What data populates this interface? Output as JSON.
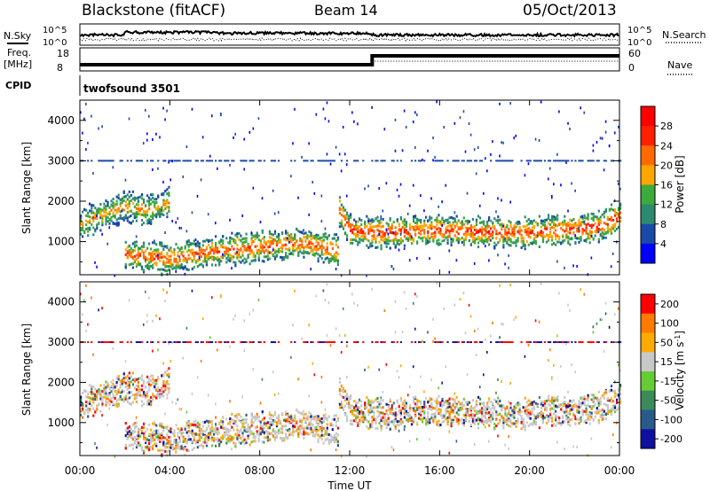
{
  "header": {
    "station": "Blackstone (fitACF)",
    "beam": "Beam 14",
    "date": "05/Oct/2013"
  },
  "noise_panel": {
    "left_label": "N.Sky",
    "right_label": "N.Search",
    "ticks": [
      "10^5",
      "10^0"
    ]
  },
  "freq_panel": {
    "left_label_1": "Freq.",
    "left_label_2": "[MHz]",
    "left_ticks": [
      "18",
      "8"
    ],
    "right_label": "Nave",
    "right_ticks": [
      "60",
      "0"
    ]
  },
  "cpid_panel": {
    "label": "CPID",
    "value": "twofsound 3501"
  },
  "chart_data": [
    {
      "type": "heatmap",
      "name": "power",
      "ylabel": "Slant Range [km]",
      "y_ticks": [
        1000,
        2000,
        3000,
        4000
      ],
      "ylim": [
        180,
        4500
      ],
      "xlim_hours": [
        0,
        24
      ],
      "colorbar": {
        "label": "Power [dB]",
        "ticks": [
          "4",
          "8",
          "12",
          "16",
          "20",
          "24",
          "28"
        ],
        "range": [
          0,
          32
        ],
        "colors": [
          "#0000ff",
          "#1a4aa8",
          "#2e8a6e",
          "#3caa3c",
          "#ffa500",
          "#ff6a00",
          "#ff2000",
          "#ff0000"
        ]
      },
      "bands": [
        {
          "t": [
            0,
            1,
            2,
            3,
            4
          ],
          "r": [
            1450,
            1700,
            1900,
            1800,
            2000
          ],
          "level": 20
        },
        {
          "t": [
            2,
            4,
            6,
            8,
            10,
            11.5
          ],
          "r": [
            700,
            600,
            800,
            900,
            1000,
            800
          ],
          "level": 24
        },
        {
          "t": [
            11.5,
            12,
            13,
            16,
            20,
            23,
            24
          ],
          "r": [
            1800,
            1300,
            1250,
            1300,
            1250,
            1400,
            1650
          ],
          "level": 26
        }
      ]
    },
    {
      "type": "heatmap",
      "name": "velocity",
      "ylabel": "Slant Range [km]",
      "y_ticks": [
        1000,
        2000,
        3000,
        4000
      ],
      "ylim": [
        180,
        4500
      ],
      "xlim_hours": [
        0,
        24
      ],
      "colorbar": {
        "label": "Velocity [m s^-1]",
        "ticks": [
          "200",
          "100",
          "50",
          "15",
          "-15",
          "-50",
          "-100",
          "-200"
        ],
        "range": [
          -250,
          250
        ],
        "colors": [
          "#1010a0",
          "#2a5a8a",
          "#3a8a5a",
          "#66cc33",
          "#c8c8c8",
          "#ffaa00",
          "#ff7a00",
          "#ff0000"
        ]
      }
    }
  ],
  "x_axis": {
    "label": "Time UT",
    "ticks": [
      "00:00",
      "04:00",
      "08:00",
      "12:00",
      "16:00",
      "20:00",
      "00:00"
    ]
  }
}
